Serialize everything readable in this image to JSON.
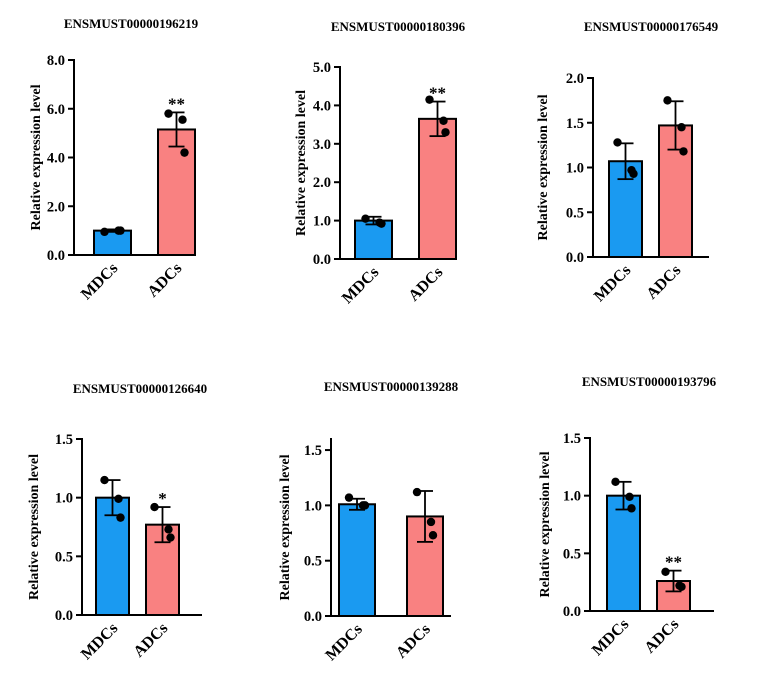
{
  "figure": {
    "colors": {
      "MDCs": "#1a9af1",
      "ADCs": "#f98181",
      "axis": "#000000"
    }
  },
  "chart_data": [
    {
      "type": "bar",
      "title": "ENSMUST00000196219",
      "ylabel": "Relative expression level",
      "categories": [
        "MDCs",
        "ADCs"
      ],
      "values": [
        1.0,
        5.15
      ],
      "error": [
        0.05,
        0.7
      ],
      "points": [
        [
          0.95,
          1.0,
          1.0
        ],
        [
          5.8,
          5.55,
          4.2
        ]
      ],
      "significance": [
        "",
        "**"
      ],
      "ylim": [
        0,
        8
      ],
      "yticks": [
        0,
        2,
        4,
        6,
        8
      ],
      "yticklabels": [
        "0.0",
        "2.0",
        "4.0",
        "6.0",
        "8.0"
      ]
    },
    {
      "type": "bar",
      "title": "ENSMUST00000180396",
      "ylabel": "Relative expression level",
      "categories": [
        "MDCs",
        "ADCs"
      ],
      "values": [
        1.0,
        3.65
      ],
      "error": [
        0.1,
        0.45
      ],
      "points": [
        [
          1.05,
          0.95,
          0.92
        ],
        [
          4.15,
          3.6,
          3.3
        ]
      ],
      "significance": [
        "",
        "**"
      ],
      "ylim": [
        0,
        5
      ],
      "yticks": [
        0,
        1,
        2,
        3,
        4,
        5
      ],
      "yticklabels": [
        "0.0",
        "1.0",
        "2.0",
        "3.0",
        "4.0",
        "5.0"
      ]
    },
    {
      "type": "bar",
      "title": "ENSMUST00000176549",
      "ylabel": "Relative expression level",
      "categories": [
        "MDCs",
        "ADCs"
      ],
      "values": [
        1.07,
        1.47
      ],
      "error": [
        0.2,
        0.27
      ],
      "points": [
        [
          1.28,
          0.97,
          0.93
        ],
        [
          1.75,
          1.45,
          1.18
        ]
      ],
      "significance": [
        "",
        ""
      ],
      "ylim": [
        0,
        2
      ],
      "yticks": [
        0,
        0.5,
        1,
        1.5,
        2
      ],
      "yticklabels": [
        "0.0",
        "0.5",
        "1.0",
        "1.5",
        "2.0"
      ]
    },
    {
      "type": "bar",
      "title": "ENSMUST00000126640",
      "ylabel": "Relative expression level",
      "categories": [
        "MDCs",
        "ADCs"
      ],
      "values": [
        1.0,
        0.77
      ],
      "error": [
        0.15,
        0.15
      ],
      "points": [
        [
          1.15,
          0.99,
          0.83
        ],
        [
          0.92,
          0.73,
          0.66
        ]
      ],
      "significance": [
        "",
        "*"
      ],
      "ylim": [
        0,
        1.5
      ],
      "yticks": [
        0,
        0.5,
        1,
        1.5
      ],
      "yticklabels": [
        "0.0",
        "0.5",
        "1.0",
        "1.5"
      ]
    },
    {
      "type": "bar",
      "title": "ENSMUST00000139288",
      "ylabel": "Relative expression level",
      "categories": [
        "MDCs",
        "ADCs"
      ],
      "values": [
        1.01,
        0.9
      ],
      "error": [
        0.05,
        0.23
      ],
      "points": [
        [
          1.07,
          1.0,
          1.0
        ],
        [
          1.12,
          0.85,
          0.73
        ]
      ],
      "significance": [
        "",
        ""
      ],
      "ylim": [
        0,
        1.6
      ],
      "yticks": [
        0,
        0.5,
        1,
        1.5
      ],
      "yticklabels": [
        "0.0",
        "0.5",
        "1.0",
        "1.5"
      ]
    },
    {
      "type": "bar",
      "title": "ENSMUST00000193796",
      "ylabel": "Relative expression level",
      "categories": [
        "MDCs",
        "ADCs"
      ],
      "values": [
        1.0,
        0.26
      ],
      "error": [
        0.12,
        0.09
      ],
      "points": [
        [
          1.12,
          0.99,
          0.89
        ],
        [
          0.34,
          0.22,
          0.21
        ]
      ],
      "significance": [
        "",
        "**"
      ],
      "ylim": [
        0,
        1.5
      ],
      "yticks": [
        0,
        0.5,
        1,
        1.5
      ],
      "yticklabels": [
        "0.0",
        "0.5",
        "1.0",
        "1.5"
      ]
    }
  ]
}
